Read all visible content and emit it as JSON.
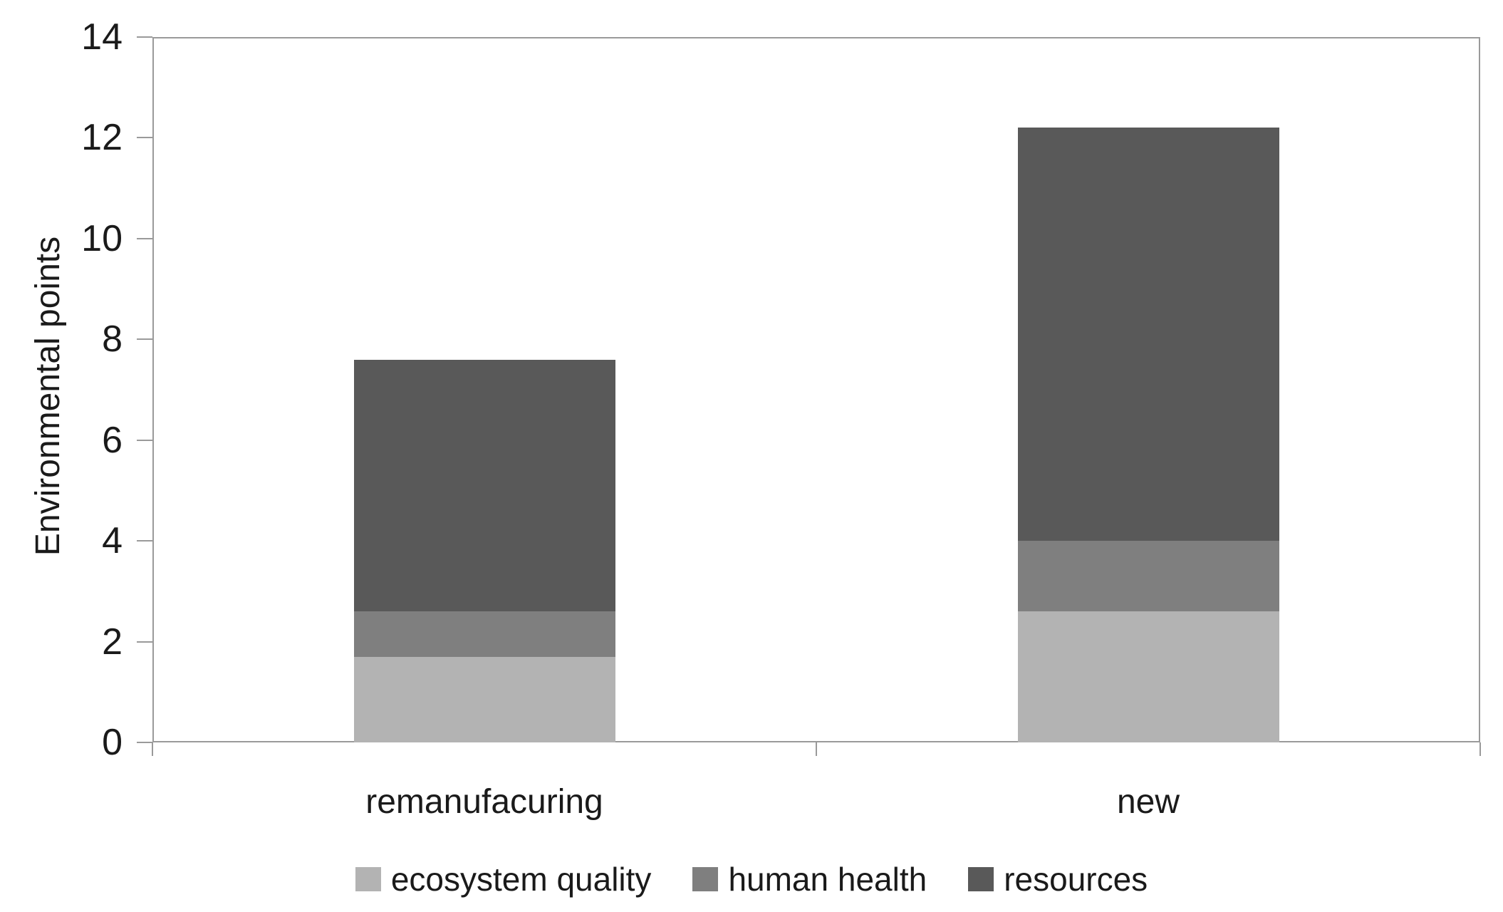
{
  "chart_data": {
    "type": "bar",
    "stacked": true,
    "title": "",
    "ylabel": "Environmental points",
    "xlabel": "",
    "ylim": [
      0,
      14
    ],
    "yticks": [
      "0",
      "2",
      "4",
      "6",
      "8",
      "10",
      "12",
      "14"
    ],
    "grid": false,
    "legend_position": "bottom",
    "categories": [
      "remanufacuring",
      "new"
    ],
    "series": [
      {
        "name": "ecosystem quality",
        "color": "#b3b3b3",
        "values": [
          1.7,
          2.6
        ]
      },
      {
        "name": "human health",
        "color": "#7f7f7f",
        "values": [
          0.9,
          1.4
        ]
      },
      {
        "name": "resources",
        "color": "#595959",
        "values": [
          5.0,
          8.2
        ]
      }
    ],
    "totals": [
      7.6,
      12.2
    ],
    "axis_color": "#9a9a9a",
    "text_color": "#1a1a1a",
    "plot_background": "#ffffff"
  }
}
